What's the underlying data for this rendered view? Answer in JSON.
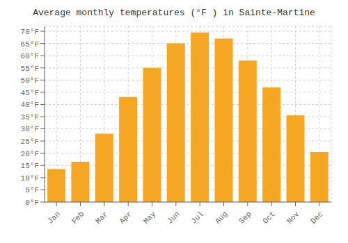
{
  "chart_data": {
    "type": "bar",
    "title": "Average monthly temperatures (°F ) in Sainte-Martine",
    "categories": [
      "Jan",
      "Feb",
      "Mar",
      "Apr",
      "May",
      "Jun",
      "Jul",
      "Aug",
      "Sep",
      "Oct",
      "Nov",
      "Dec"
    ],
    "values": [
      13.5,
      16.5,
      28,
      43,
      55,
      65,
      69.5,
      67,
      58,
      47,
      35.5,
      20.5
    ],
    "color": "#F5A623",
    "ylim": [
      0,
      72
    ],
    "yticks": [
      {
        "value": 0,
        "label": "0°F"
      },
      {
        "value": 5,
        "label": "5°F"
      },
      {
        "value": 10,
        "label": "10°F"
      },
      {
        "value": 15,
        "label": "15°F"
      },
      {
        "value": 20,
        "label": "20°F"
      },
      {
        "value": 25,
        "label": "25°F"
      },
      {
        "value": 30,
        "label": "30°F"
      },
      {
        "value": 35,
        "label": "35°F"
      },
      {
        "value": 40,
        "label": "40°F"
      },
      {
        "value": 45,
        "label": "45°F"
      },
      {
        "value": 50,
        "label": "50°F"
      },
      {
        "value": 55,
        "label": "55°F"
      },
      {
        "value": 60,
        "label": "60°F"
      },
      {
        "value": 65,
        "label": "65°F"
      },
      {
        "value": 70,
        "label": "70°F"
      }
    ],
    "grid": true
  }
}
